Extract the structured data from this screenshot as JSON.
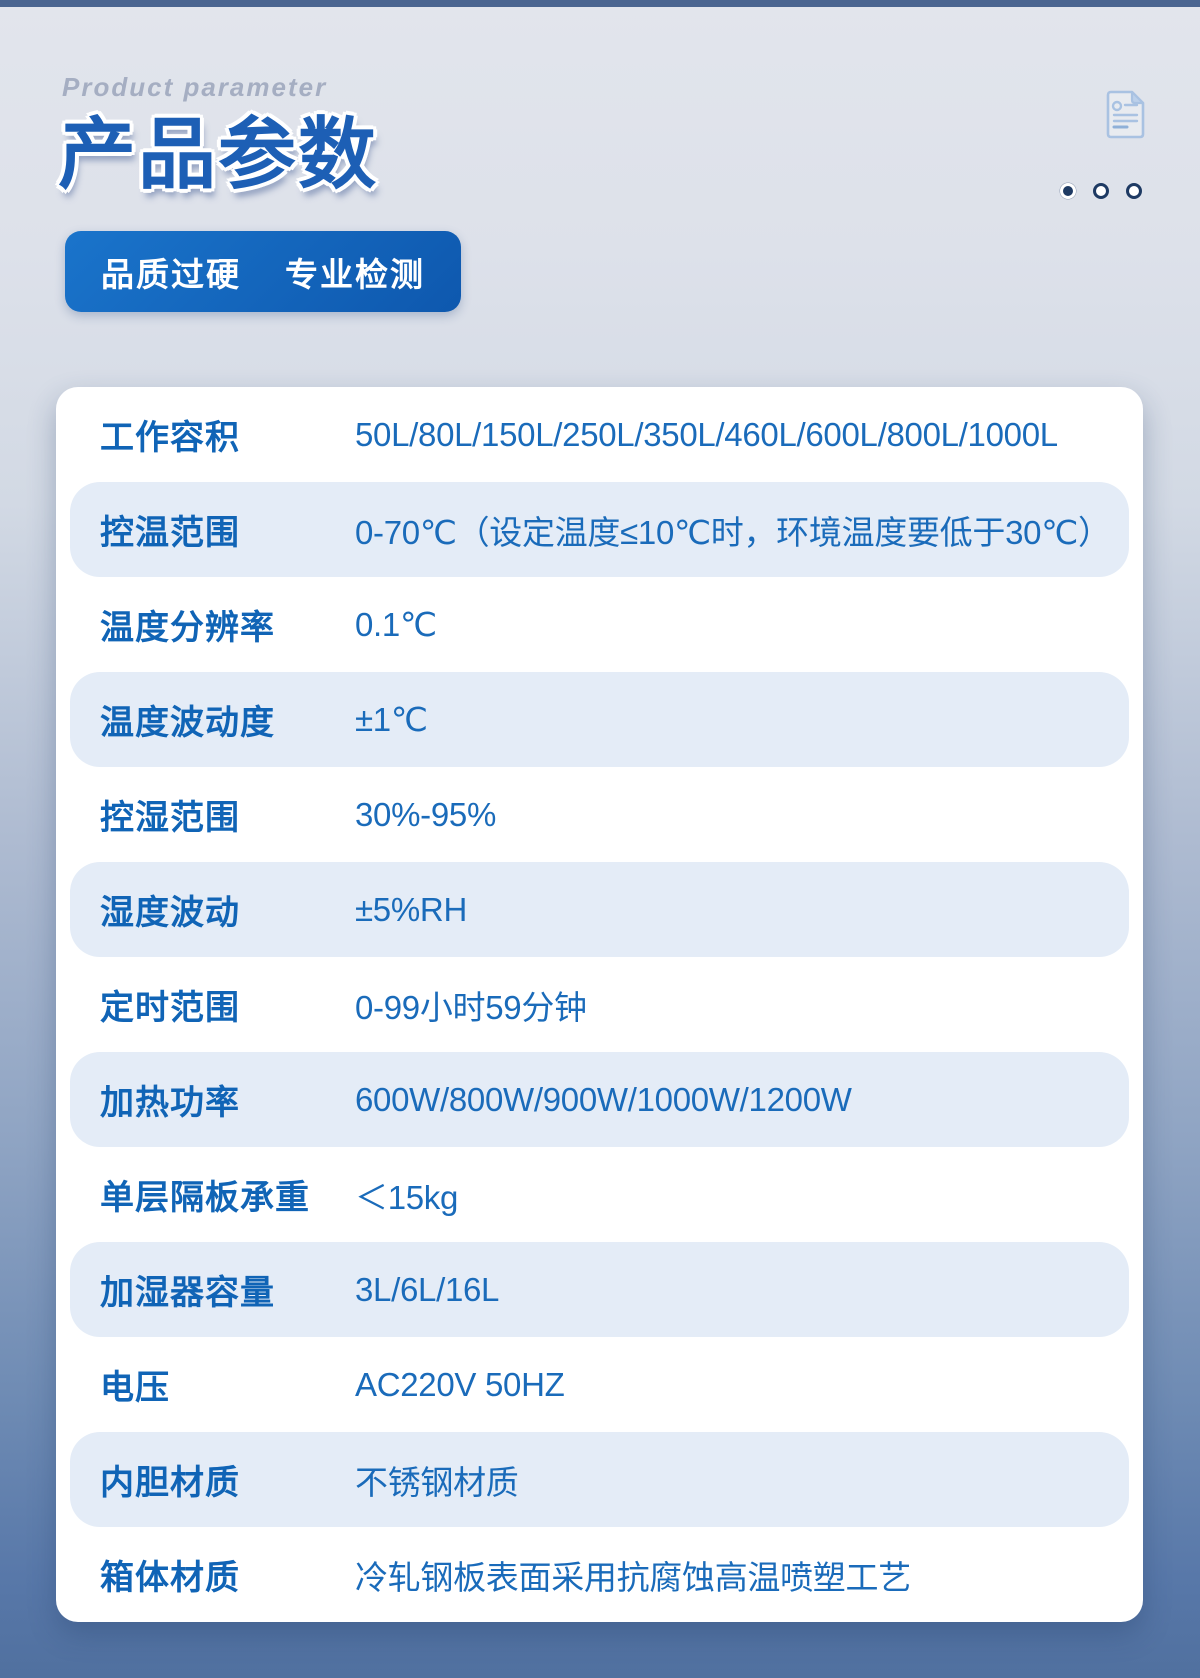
{
  "header": {
    "eyebrow": "Product parameter",
    "title": "产品参数",
    "badge_labels": [
      "品质过硬",
      "专业检测"
    ],
    "pagination": {
      "count": 3,
      "active_index": 0
    }
  },
  "colors": {
    "top_bar": "#4a6590",
    "title_blue": "#1d5fb5",
    "badge_blue_start": "#1a74cb",
    "badge_blue_end": "#0e58ae",
    "label_blue": "#1064b6",
    "value_blue": "#1a6bba",
    "row_stripe_bg": "#e4ecf7",
    "dot_navy": "#1e3a63",
    "icon_light_blue": "#a9c2e2",
    "background_top": "#e2e5ec",
    "background_bottom": "#50709f"
  },
  "parameters": {
    "rows": [
      {
        "label": "工作容积",
        "value": "50L/80L/150L/250L/350L/460L/600L/800L/1000L"
      },
      {
        "label": "控温范围",
        "value": "0-70℃（设定温度≤10℃时，环境温度要低于30℃）"
      },
      {
        "label": "温度分辨率",
        "value": "0.1℃"
      },
      {
        "label": "温度波动度",
        "value": "±1℃"
      },
      {
        "label": "控湿范围",
        "value": "30%-95%"
      },
      {
        "label": "湿度波动",
        "value": "±5%RH"
      },
      {
        "label": "定时范围",
        "value": "0-99小时59分钟"
      },
      {
        "label": "加热功率",
        "value": "600W/800W/900W/1000W/1200W"
      },
      {
        "label": "单层隔板承重",
        "value": "＜15kg"
      },
      {
        "label": "加湿器容量",
        "value": "3L/6L/16L"
      },
      {
        "label": "电压",
        "value": "AC220V 50HZ"
      },
      {
        "label": "内胆材质",
        "value": "不锈钢材质"
      },
      {
        "label": "箱体材质",
        "value": "冷轧钢板表面采用抗腐蚀高温喷塑工艺"
      }
    ]
  }
}
